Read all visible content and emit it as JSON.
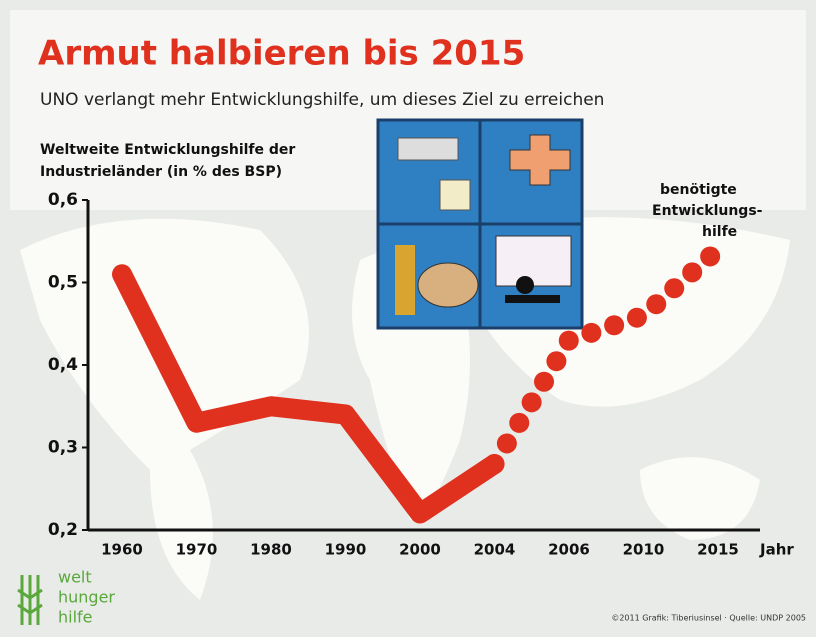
{
  "chart_data": {
    "type": "line",
    "title": "Armut halbieren bis 2015",
    "subtitle": "UNO verlangt mehr Entwicklungshilfe, um dieses Ziel zu erreichen",
    "y_label": [
      "Weltweite Entwicklungshilfe der",
      "Industrieländer (in % des BSP)"
    ],
    "x_label": "Jahr",
    "categories": [
      "1960",
      "1970",
      "1980",
      "1990",
      "2000",
      "2004",
      "2006",
      "2010",
      "2015"
    ],
    "series": [
      {
        "color": "#e0301e",
        "style": "solid",
        "values": [
          0.51,
          0.33,
          0.35,
          0.34,
          0.22,
          0.28,
          null,
          null,
          null
        ]
      },
      {
        "color": "#e0301e",
        "style": "dotted",
        "values": [
          null,
          null,
          null,
          null,
          null,
          0.28,
          0.43,
          0.46,
          0.54
        ]
      }
    ],
    "annotation": [
      "benötigte",
      "Entwicklungs-",
      "hilfe"
    ],
    "ylim": [
      0.2,
      0.6
    ],
    "yticks": [
      {
        "value": 0.2,
        "label": "0,2"
      },
      {
        "value": 0.3,
        "label": "0,3"
      },
      {
        "value": 0.4,
        "label": "0,4"
      },
      {
        "value": 0.5,
        "label": "0,5"
      },
      {
        "value": 0.6,
        "label": "0,6"
      }
    ],
    "logo": [
      "welt",
      "hunger",
      "hilfe"
    ],
    "source": "©2011 Grafik: Tiberiusinsel · Quelle: UNDP 2005"
  }
}
